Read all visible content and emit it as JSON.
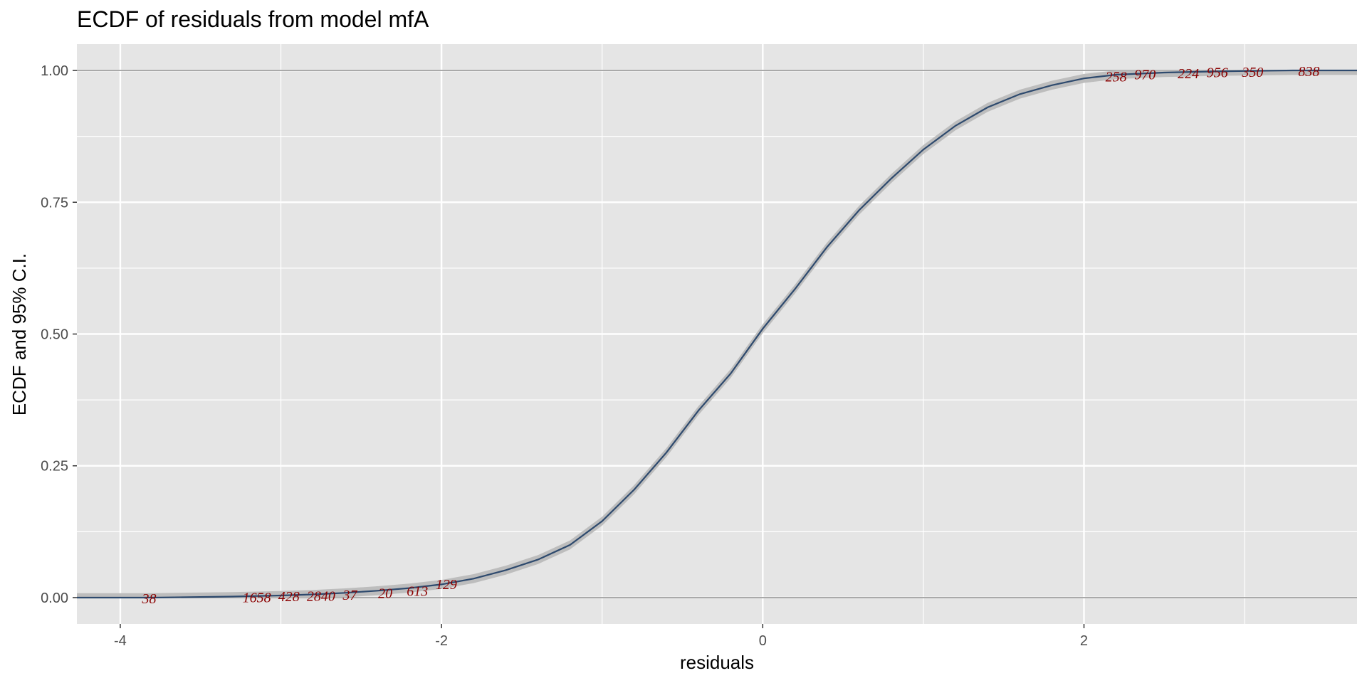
{
  "chart_data": {
    "type": "line",
    "title": "ECDF of residuals from model mfA",
    "xlabel": "residuals",
    "ylabel": "ECDF and 95% C.I.",
    "xlim": [
      -4.27,
      3.7
    ],
    "ylim": [
      -0.05,
      1.05
    ],
    "x_ticks": [
      -4,
      -2,
      0,
      2
    ],
    "x_tick_labels": [
      "-4",
      "-2",
      "0",
      "2"
    ],
    "x_minor_ticks": [
      -3,
      -1,
      1,
      3
    ],
    "y_ticks": [
      0,
      0.25,
      0.5,
      0.75,
      1
    ],
    "y_tick_labels": [
      "0.00",
      "0.25",
      "0.50",
      "0.75",
      "1.00"
    ],
    "y_minor_ticks": [
      0.125,
      0.375,
      0.625,
      0.875
    ],
    "reference_lines_y": [
      0,
      1
    ],
    "grid": true,
    "series": [
      {
        "role": "ecdf",
        "color": "#2e4a6e",
        "x": [
          -4.27,
          -3.8,
          -3.3,
          -3.0,
          -2.8,
          -2.6,
          -2.4,
          -2.2,
          -2.0,
          -1.8,
          -1.6,
          -1.4,
          -1.2,
          -1.0,
          -0.8,
          -0.6,
          -0.4,
          -0.2,
          0.0,
          0.2,
          0.4,
          0.6,
          0.8,
          1.0,
          1.2,
          1.4,
          1.6,
          1.8,
          2.0,
          2.2,
          2.5,
          2.8,
          3.0,
          3.3,
          3.7
        ],
        "y": [
          0.0,
          0.0,
          0.002,
          0.004,
          0.006,
          0.009,
          0.013,
          0.018,
          0.025,
          0.036,
          0.052,
          0.072,
          0.1,
          0.145,
          0.205,
          0.275,
          0.355,
          0.425,
          0.51,
          0.585,
          0.665,
          0.735,
          0.795,
          0.85,
          0.895,
          0.93,
          0.955,
          0.972,
          0.985,
          0.992,
          0.996,
          0.998,
          0.999,
          1.0,
          1.0
        ]
      }
    ],
    "confidence_band": {
      "level": "95%",
      "color": "#bdbdbd",
      "half_width": 0.0085
    },
    "point_labels": [
      {
        "text": "38",
        "x": -3.82,
        "y": 0.0
      },
      {
        "text": "1658",
        "x": -3.15,
        "y": 0.002
      },
      {
        "text": "428",
        "x": -2.95,
        "y": 0.004
      },
      {
        "text": "2840",
        "x": -2.75,
        "y": 0.005
      },
      {
        "text": "37",
        "x": -2.57,
        "y": 0.007
      },
      {
        "text": "20",
        "x": -2.35,
        "y": 0.01
      },
      {
        "text": "613",
        "x": -2.15,
        "y": 0.014
      },
      {
        "text": "129",
        "x": -1.97,
        "y": 0.027
      },
      {
        "text": "258",
        "x": 2.2,
        "y": 0.99
      },
      {
        "text": "970",
        "x": 2.38,
        "y": 0.994
      },
      {
        "text": "224",
        "x": 2.65,
        "y": 0.996
      },
      {
        "text": "956",
        "x": 2.83,
        "y": 0.998
      },
      {
        "text": "350",
        "x": 3.05,
        "y": 0.999
      },
      {
        "text": "838",
        "x": 3.4,
        "y": 1.0
      }
    ],
    "colors": {
      "panel": "#e5e5e5",
      "grid": "#ffffff",
      "reference_line": "#a9a9a9",
      "label": "#8b0000"
    }
  }
}
